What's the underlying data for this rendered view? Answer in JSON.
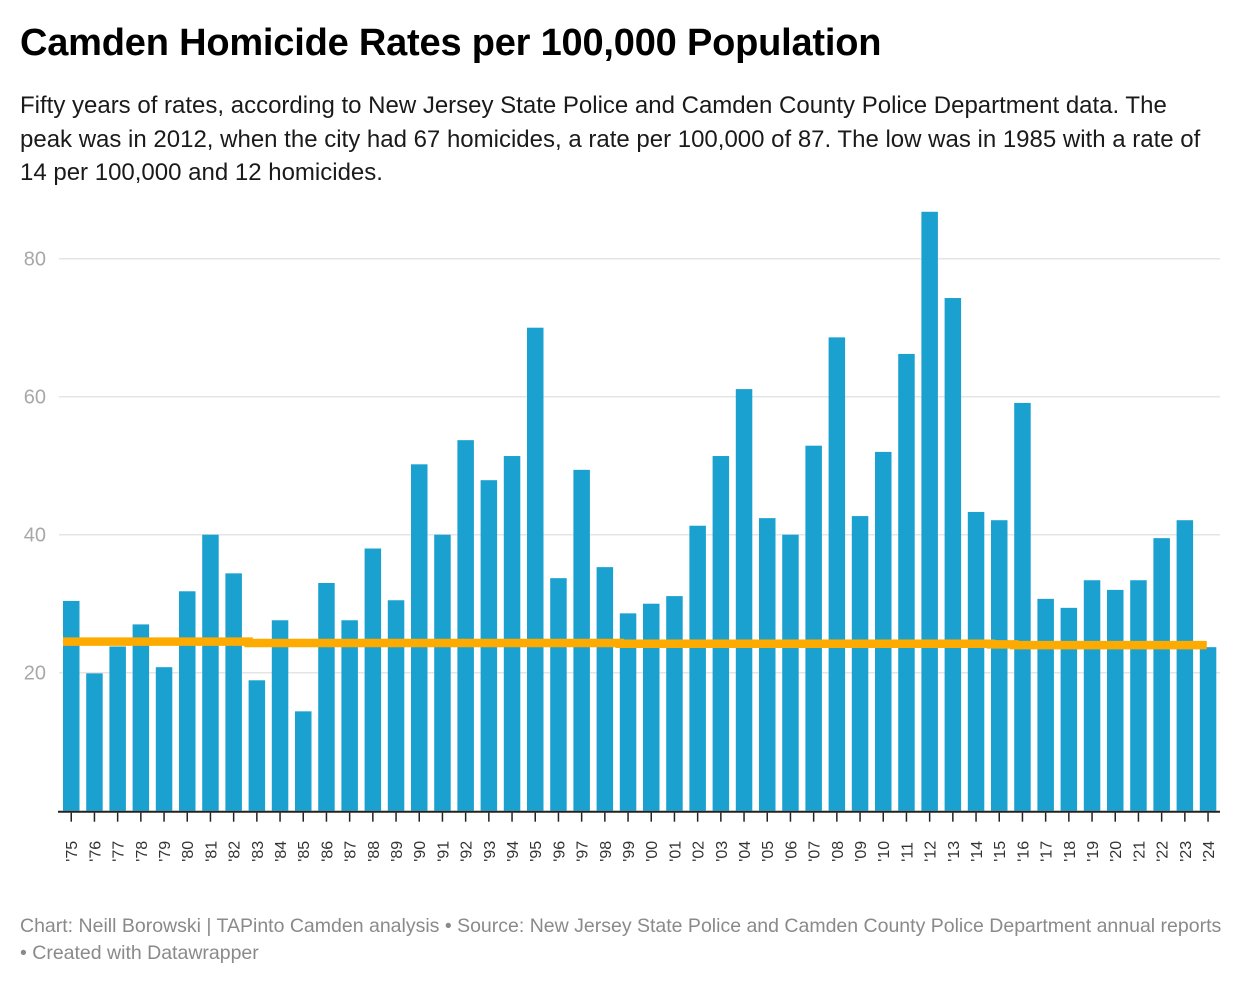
{
  "header": {
    "title": "Camden Homicide Rates per 100,000 Population",
    "subtitle": "Fifty years of rates, according to New Jersey State Police and Camden County Police Department data. The peak was in 2012, when the city had 67 homicides, a rate per 100,000 of 87. The low was in 1985 with a rate of 14 per 100,000 and 12 homicides."
  },
  "footer": {
    "text": "Chart: Neill Borowski | TAPinto Camden analysis • Source: New Jersey State Police and Camden County Police Department annual reports • Created with Datawrapper"
  },
  "colors": {
    "bar": "#1aa1cf",
    "reference_line": "#fdab00",
    "gridline": "#e5e5e5",
    "axis": "#222222"
  },
  "chart_data": {
    "type": "bar",
    "title": "Camden Homicide Rates per 100,000 Population",
    "xlabel": "",
    "ylabel": "",
    "ylim": [
      0,
      88
    ],
    "yticks": [
      20,
      40,
      60,
      80
    ],
    "grid": true,
    "categories": [
      "'75",
      "'76",
      "'77",
      "'78",
      "'79",
      "'80",
      "'81",
      "'82",
      "'83",
      "'84",
      "'85",
      "'86",
      "'87",
      "'88",
      "'89",
      "'90",
      "'91",
      "'92",
      "'93",
      "'94",
      "'95",
      "'96",
      "'97",
      "'98",
      "'99",
      "'00",
      "'01",
      "'02",
      "'03",
      "'04",
      "'05",
      "'06",
      "'07",
      "'08",
      "'09",
      "'10",
      "'11",
      "'12",
      "'13",
      "'14",
      "'15",
      "'16",
      "'17",
      "'18",
      "'19",
      "'20",
      "'21",
      "'22",
      "'23",
      "'24"
    ],
    "series": [
      {
        "name": "Homicide rate per 100,000",
        "type": "bar",
        "values": [
          30.4,
          19.9,
          23.8,
          27.0,
          20.8,
          31.8,
          40.0,
          34.4,
          18.9,
          27.6,
          14.4,
          33.0,
          27.6,
          38.0,
          30.5,
          50.2,
          40.0,
          53.7,
          47.9,
          51.4,
          70.0,
          33.7,
          49.4,
          35.3,
          28.6,
          30.0,
          31.1,
          41.3,
          51.4,
          61.1,
          42.4,
          40.0,
          52.9,
          68.6,
          42.7,
          52.0,
          66.2,
          86.8,
          74.3,
          43.3,
          42.1,
          59.1,
          30.7,
          29.4,
          33.4,
          32.0,
          33.4,
          39.5,
          42.1,
          23.7
        ]
      },
      {
        "name": "Reference line",
        "type": "line",
        "values": [
          24.5,
          24.5,
          24.5,
          24.5,
          24.5,
          24.5,
          24.5,
          24.5,
          24.3,
          24.3,
          24.3,
          24.3,
          24.3,
          24.3,
          24.3,
          24.3,
          24.3,
          24.3,
          24.3,
          24.3,
          24.3,
          24.3,
          24.3,
          24.3,
          24.2,
          24.2,
          24.2,
          24.2,
          24.2,
          24.2,
          24.2,
          24.2,
          24.2,
          24.2,
          24.2,
          24.2,
          24.2,
          24.2,
          24.2,
          24.2,
          24.1,
          24.0,
          24.0,
          24.0,
          24.0,
          24.0,
          24.0,
          24.0,
          24.0,
          24.0
        ]
      }
    ],
    "legend": "none"
  }
}
